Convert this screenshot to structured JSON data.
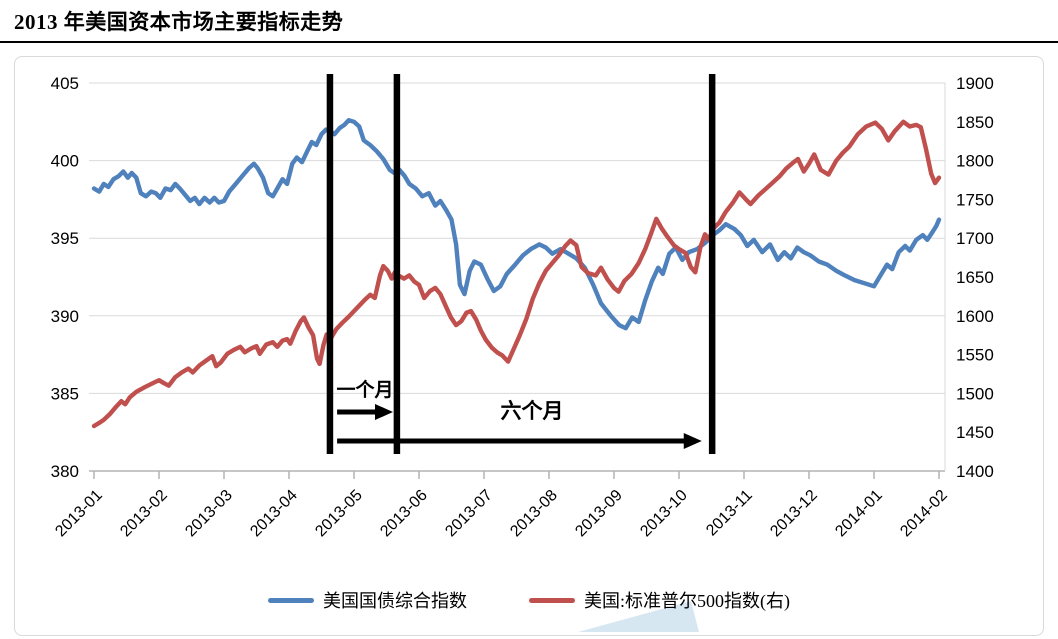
{
  "page": {
    "title": "2013 年美国资本市场主要指标走势"
  },
  "chart_data": {
    "type": "line",
    "title": "2013 年美国资本市场主要指标走势",
    "x_axis": {
      "labels": [
        "2013-01",
        "2013-02",
        "2013-03",
        "2013-04",
        "2013-05",
        "2013-06",
        "2013-07",
        "2013-08",
        "2013-09",
        "2013-10",
        "2013-11",
        "2013-12",
        "2014-01",
        "2014-02"
      ]
    },
    "left_axis": {
      "min": 380,
      "max": 405,
      "ticks": [
        405,
        400,
        395,
        390,
        385,
        380
      ]
    },
    "right_axis": {
      "min": 1400,
      "max": 1900,
      "ticks": [
        1900,
        1850,
        1800,
        1750,
        1700,
        1650,
        1600,
        1550,
        1500,
        1450,
        1400
      ]
    },
    "grid_color": "#d9d9d9",
    "axis_color": "#b3b3b3",
    "series": [
      {
        "name": "美国国债综合指数",
        "axis": "left",
        "color": "#4f81bd",
        "points": [
          [
            0,
            398.2
          ],
          [
            0.08,
            398.0
          ],
          [
            0.15,
            398.5
          ],
          [
            0.22,
            398.3
          ],
          [
            0.3,
            398.8
          ],
          [
            0.38,
            399.0
          ],
          [
            0.45,
            399.3
          ],
          [
            0.52,
            398.9
          ],
          [
            0.58,
            399.2
          ],
          [
            0.65,
            398.9
          ],
          [
            0.72,
            397.9
          ],
          [
            0.8,
            397.7
          ],
          [
            0.88,
            398.0
          ],
          [
            0.95,
            397.9
          ],
          [
            1.02,
            397.6
          ],
          [
            1.1,
            398.2
          ],
          [
            1.18,
            398.1
          ],
          [
            1.25,
            398.5
          ],
          [
            1.32,
            398.2
          ],
          [
            1.4,
            397.8
          ],
          [
            1.48,
            397.4
          ],
          [
            1.55,
            397.6
          ],
          [
            1.62,
            397.2
          ],
          [
            1.7,
            397.6
          ],
          [
            1.78,
            397.3
          ],
          [
            1.85,
            397.6
          ],
          [
            1.92,
            397.3
          ],
          [
            2.0,
            397.4
          ],
          [
            2.08,
            398.0
          ],
          [
            2.18,
            398.5
          ],
          [
            2.28,
            399.0
          ],
          [
            2.38,
            399.5
          ],
          [
            2.46,
            399.8
          ],
          [
            2.52,
            399.5
          ],
          [
            2.6,
            398.9
          ],
          [
            2.68,
            397.9
          ],
          [
            2.75,
            397.7
          ],
          [
            2.82,
            398.2
          ],
          [
            2.9,
            398.8
          ],
          [
            2.97,
            398.5
          ],
          [
            3.05,
            399.8
          ],
          [
            3.12,
            400.2
          ],
          [
            3.2,
            399.9
          ],
          [
            3.28,
            400.6
          ],
          [
            3.35,
            401.2
          ],
          [
            3.42,
            401.0
          ],
          [
            3.5,
            401.7
          ],
          [
            3.57,
            402.0
          ],
          [
            3.63,
            401.9
          ],
          [
            3.7,
            401.7
          ],
          [
            3.78,
            402.1
          ],
          [
            3.85,
            402.3
          ],
          [
            3.92,
            402.6
          ],
          [
            4.0,
            402.5
          ],
          [
            4.08,
            402.2
          ],
          [
            4.15,
            401.3
          ],
          [
            4.25,
            401.0
          ],
          [
            4.35,
            400.6
          ],
          [
            4.45,
            400.1
          ],
          [
            4.55,
            399.4
          ],
          [
            4.62,
            399.2
          ],
          [
            4.7,
            399.4
          ],
          [
            4.78,
            399.0
          ],
          [
            4.85,
            398.5
          ],
          [
            4.95,
            398.2
          ],
          [
            5.05,
            397.7
          ],
          [
            5.15,
            397.9
          ],
          [
            5.25,
            397.1
          ],
          [
            5.33,
            397.4
          ],
          [
            5.42,
            396.8
          ],
          [
            5.5,
            396.2
          ],
          [
            5.57,
            394.6
          ],
          [
            5.63,
            392.0
          ],
          [
            5.7,
            391.4
          ],
          [
            5.78,
            392.9
          ],
          [
            5.85,
            393.5
          ],
          [
            5.95,
            393.3
          ],
          [
            6.05,
            392.4
          ],
          [
            6.15,
            391.6
          ],
          [
            6.25,
            391.9
          ],
          [
            6.35,
            392.7
          ],
          [
            6.48,
            393.3
          ],
          [
            6.6,
            393.9
          ],
          [
            6.72,
            394.3
          ],
          [
            6.85,
            394.6
          ],
          [
            6.95,
            394.4
          ],
          [
            7.05,
            394.0
          ],
          [
            7.18,
            394.3
          ],
          [
            7.3,
            394.0
          ],
          [
            7.42,
            393.7
          ],
          [
            7.55,
            393.1
          ],
          [
            7.68,
            392.0
          ],
          [
            7.8,
            390.8
          ],
          [
            7.95,
            390.0
          ],
          [
            8.08,
            389.4
          ],
          [
            8.18,
            389.2
          ],
          [
            8.28,
            389.9
          ],
          [
            8.38,
            389.6
          ],
          [
            8.48,
            391.0
          ],
          [
            8.58,
            392.2
          ],
          [
            8.68,
            393.1
          ],
          [
            8.75,
            392.7
          ],
          [
            8.85,
            394.0
          ],
          [
            8.95,
            394.4
          ],
          [
            9.05,
            393.6
          ],
          [
            9.15,
            394.1
          ],
          [
            9.28,
            394.3
          ],
          [
            9.4,
            394.7
          ],
          [
            9.52,
            395.2
          ],
          [
            9.62,
            395.5
          ],
          [
            9.72,
            395.9
          ],
          [
            9.85,
            395.6
          ],
          [
            9.95,
            395.2
          ],
          [
            10.05,
            394.5
          ],
          [
            10.15,
            394.9
          ],
          [
            10.28,
            394.1
          ],
          [
            10.4,
            394.6
          ],
          [
            10.52,
            393.6
          ],
          [
            10.62,
            394.1
          ],
          [
            10.72,
            393.7
          ],
          [
            10.82,
            394.4
          ],
          [
            10.92,
            394.1
          ],
          [
            11.02,
            393.9
          ],
          [
            11.15,
            393.5
          ],
          [
            11.28,
            393.3
          ],
          [
            11.42,
            392.9
          ],
          [
            11.55,
            392.6
          ],
          [
            11.7,
            392.3
          ],
          [
            11.85,
            392.1
          ],
          [
            12.0,
            391.9
          ],
          [
            12.1,
            392.6
          ],
          [
            12.2,
            393.3
          ],
          [
            12.28,
            393.0
          ],
          [
            12.38,
            394.1
          ],
          [
            12.48,
            394.5
          ],
          [
            12.55,
            394.2
          ],
          [
            12.65,
            394.9
          ],
          [
            12.75,
            395.2
          ],
          [
            12.82,
            394.9
          ],
          [
            12.9,
            395.4
          ],
          [
            12.96,
            395.8
          ],
          [
            13.0,
            396.2
          ]
        ]
      },
      {
        "name": "美国:标准普尔500指数(右)",
        "axis": "right",
        "color": "#c0504d",
        "points": [
          [
            0,
            1458
          ],
          [
            0.08,
            1462
          ],
          [
            0.15,
            1466
          ],
          [
            0.25,
            1474
          ],
          [
            0.33,
            1482
          ],
          [
            0.42,
            1490
          ],
          [
            0.48,
            1486
          ],
          [
            0.55,
            1495
          ],
          [
            0.65,
            1502
          ],
          [
            0.78,
            1508
          ],
          [
            0.9,
            1513
          ],
          [
            1.0,
            1517
          ],
          [
            1.08,
            1513
          ],
          [
            1.15,
            1510
          ],
          [
            1.25,
            1521
          ],
          [
            1.35,
            1527
          ],
          [
            1.45,
            1532
          ],
          [
            1.52,
            1527
          ],
          [
            1.62,
            1536
          ],
          [
            1.72,
            1542
          ],
          [
            1.82,
            1548
          ],
          [
            1.88,
            1535
          ],
          [
            1.95,
            1540
          ],
          [
            2.05,
            1551
          ],
          [
            2.15,
            1556
          ],
          [
            2.25,
            1560
          ],
          [
            2.32,
            1553
          ],
          [
            2.42,
            1558
          ],
          [
            2.5,
            1561
          ],
          [
            2.55,
            1551
          ],
          [
            2.65,
            1563
          ],
          [
            2.75,
            1566
          ],
          [
            2.82,
            1560
          ],
          [
            2.9,
            1568
          ],
          [
            2.97,
            1570
          ],
          [
            3.02,
            1564
          ],
          [
            3.1,
            1580
          ],
          [
            3.18,
            1593
          ],
          [
            3.23,
            1598
          ],
          [
            3.3,
            1585
          ],
          [
            3.37,
            1575
          ],
          [
            3.43,
            1545
          ],
          [
            3.47,
            1538
          ],
          [
            3.53,
            1562
          ],
          [
            3.58,
            1576
          ],
          [
            3.65,
            1572
          ],
          [
            3.73,
            1583
          ],
          [
            3.82,
            1591
          ],
          [
            3.92,
            1599
          ],
          [
            4.0,
            1606
          ],
          [
            4.08,
            1613
          ],
          [
            4.17,
            1621
          ],
          [
            4.25,
            1627
          ],
          [
            4.32,
            1623
          ],
          [
            4.4,
            1652
          ],
          [
            4.45,
            1664
          ],
          [
            4.52,
            1658
          ],
          [
            4.58,
            1648
          ],
          [
            4.63,
            1656
          ],
          [
            4.68,
            1652
          ],
          [
            4.77,
            1648
          ],
          [
            4.85,
            1652
          ],
          [
            4.93,
            1644
          ],
          [
            5.0,
            1640
          ],
          [
            5.08,
            1623
          ],
          [
            5.17,
            1632
          ],
          [
            5.25,
            1636
          ],
          [
            5.33,
            1628
          ],
          [
            5.42,
            1611
          ],
          [
            5.49,
            1598
          ],
          [
            5.57,
            1588
          ],
          [
            5.65,
            1593
          ],
          [
            5.73,
            1604
          ],
          [
            5.8,
            1606
          ],
          [
            5.88,
            1595
          ],
          [
            5.95,
            1581
          ],
          [
            6.03,
            1569
          ],
          [
            6.12,
            1559
          ],
          [
            6.2,
            1553
          ],
          [
            6.28,
            1549
          ],
          [
            6.37,
            1541
          ],
          [
            6.45,
            1556
          ],
          [
            6.55,
            1575
          ],
          [
            6.65,
            1596
          ],
          [
            6.75,
            1622
          ],
          [
            6.85,
            1642
          ],
          [
            6.95,
            1658
          ],
          [
            7.05,
            1668
          ],
          [
            7.15,
            1678
          ],
          [
            7.25,
            1690
          ],
          [
            7.33,
            1697
          ],
          [
            7.42,
            1691
          ],
          [
            7.5,
            1663
          ],
          [
            7.6,
            1655
          ],
          [
            7.72,
            1652
          ],
          [
            7.8,
            1662
          ],
          [
            7.9,
            1647
          ],
          [
            8.0,
            1636
          ],
          [
            8.07,
            1631
          ],
          [
            8.16,
            1645
          ],
          [
            8.27,
            1654
          ],
          [
            8.38,
            1668
          ],
          [
            8.48,
            1686
          ],
          [
            8.57,
            1706
          ],
          [
            8.65,
            1725
          ],
          [
            8.73,
            1713
          ],
          [
            8.82,
            1702
          ],
          [
            8.92,
            1691
          ],
          [
            9.0,
            1686
          ],
          [
            9.1,
            1681
          ],
          [
            9.18,
            1663
          ],
          [
            9.25,
            1656
          ],
          [
            9.33,
            1689
          ],
          [
            9.4,
            1705
          ],
          [
            9.46,
            1698
          ],
          [
            9.52,
            1712
          ],
          [
            9.62,
            1720
          ],
          [
            9.72,
            1734
          ],
          [
            9.83,
            1746
          ],
          [
            9.93,
            1759
          ],
          [
            10.03,
            1750
          ],
          [
            10.1,
            1744
          ],
          [
            10.22,
            1755
          ],
          [
            10.3,
            1761
          ],
          [
            10.42,
            1770
          ],
          [
            10.55,
            1780
          ],
          [
            10.65,
            1790
          ],
          [
            10.75,
            1797
          ],
          [
            10.83,
            1802
          ],
          [
            10.92,
            1786
          ],
          [
            11.0,
            1796
          ],
          [
            11.08,
            1808
          ],
          [
            11.18,
            1788
          ],
          [
            11.3,
            1782
          ],
          [
            11.42,
            1800
          ],
          [
            11.52,
            1810
          ],
          [
            11.62,
            1818
          ],
          [
            11.75,
            1834
          ],
          [
            11.88,
            1844
          ],
          [
            12.02,
            1849
          ],
          [
            12.12,
            1841
          ],
          [
            12.22,
            1826
          ],
          [
            12.32,
            1838
          ],
          [
            12.45,
            1850
          ],
          [
            12.55,
            1844
          ],
          [
            12.65,
            1846
          ],
          [
            12.72,
            1843
          ],
          [
            12.8,
            1815
          ],
          [
            12.88,
            1783
          ],
          [
            12.94,
            1771
          ],
          [
            13.0,
            1778
          ]
        ]
      }
    ],
    "annotations": {
      "vline_color": "#000000",
      "vlines_month_frac": [
        3.63,
        4.66,
        9.51
      ],
      "arrows": [
        {
          "label": "一个月",
          "from_frac": 3.74,
          "to_frac": 4.6
        },
        {
          "label": "六个月",
          "from_frac": 3.74,
          "to_frac": 9.35
        }
      ]
    },
    "legend_position": "bottom-center",
    "watermark_color": "#aecfe5"
  }
}
